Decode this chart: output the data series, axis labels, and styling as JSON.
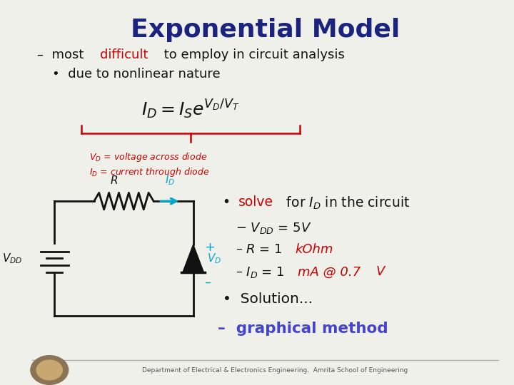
{
  "title": "Exponential Model",
  "title_color": "#1a237e",
  "title_fontsize": 26,
  "bg_color": "#f0f0eb",
  "line1_prefix": "–  most ",
  "line1_red": "difficult",
  "line1_suffix": " to employ in circuit analysis",
  "line2": "•  due to nonlinear nature",
  "bullet2_red": "solve",
  "footer": "Department of Electrical & Electronics Engineering,  Amrita School of Engineering",
  "dark_blue": "#1a237e",
  "red_color": "#cc0000",
  "cyan_color": "#00aacc",
  "purple_color": "#4444cc",
  "text_color": "#111111",
  "fs_main": 13.0,
  "brace_color": "#cc0000",
  "circuit_color": "#111111"
}
